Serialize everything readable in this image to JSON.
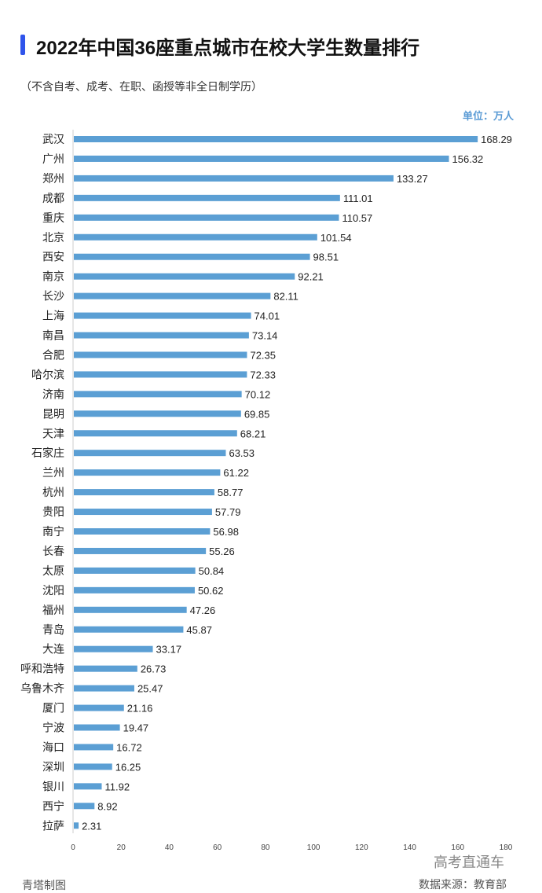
{
  "title": "2022年中国36座重点城市在校大学生数量排行",
  "subtitle": "（不含自考、成考、在职、函授等非全日制学历）",
  "unit": "单位：万人",
  "credit": "青塔制图",
  "source": "数据来源：教育部",
  "watermark": "高考直通车",
  "colors": {
    "bar": "#5b9fd4",
    "accent": "#2f54eb"
  },
  "chart_data": {
    "type": "bar",
    "orientation": "horizontal",
    "categories": [
      "武汉",
      "广州",
      "郑州",
      "成都",
      "重庆",
      "北京",
      "西安",
      "南京",
      "长沙",
      "上海",
      "南昌",
      "合肥",
      "哈尔滨",
      "济南",
      "昆明",
      "天津",
      "石家庄",
      "兰州",
      "杭州",
      "贵阳",
      "南宁",
      "长春",
      "太原",
      "沈阳",
      "福州",
      "青岛",
      "大连",
      "呼和浩特",
      "乌鲁木齐",
      "厦门",
      "宁波",
      "海口",
      "深圳",
      "银川",
      "西宁",
      "拉萨"
    ],
    "values": [
      168.29,
      156.32,
      133.27,
      111.01,
      110.57,
      101.54,
      98.51,
      92.21,
      82.11,
      74.01,
      73.14,
      72.35,
      72.33,
      70.12,
      69.85,
      68.21,
      63.53,
      61.22,
      58.77,
      57.79,
      56.98,
      55.26,
      50.84,
      50.62,
      47.26,
      45.87,
      33.17,
      26.73,
      25.47,
      21.16,
      19.47,
      16.72,
      16.25,
      11.92,
      8.92,
      2.31
    ],
    "value_labels": [
      "168.29",
      "156.32",
      "133.27",
      "111.01",
      "110.57",
      "101.54",
      "98.51",
      "92.21",
      "82.11",
      "74.01",
      "73.14",
      "72.35",
      "72.33",
      "70.12",
      "69.85",
      "68.21",
      "63.53",
      "61.22",
      "58.77",
      "57.79",
      "56.98",
      "55.26",
      "50.84",
      "50.62",
      "47.26",
      "45.87",
      "33.17",
      "26.73",
      "25.47",
      "21.16",
      "19.47",
      "16.72",
      "16.25",
      "11.92",
      "8.92",
      "2.31"
    ],
    "xlim": [
      0,
      180
    ],
    "xticks": [
      "0",
      "20",
      "40",
      "60",
      "80",
      "100",
      "120",
      "140",
      "160",
      "180"
    ],
    "grid": false,
    "legend": "none"
  }
}
